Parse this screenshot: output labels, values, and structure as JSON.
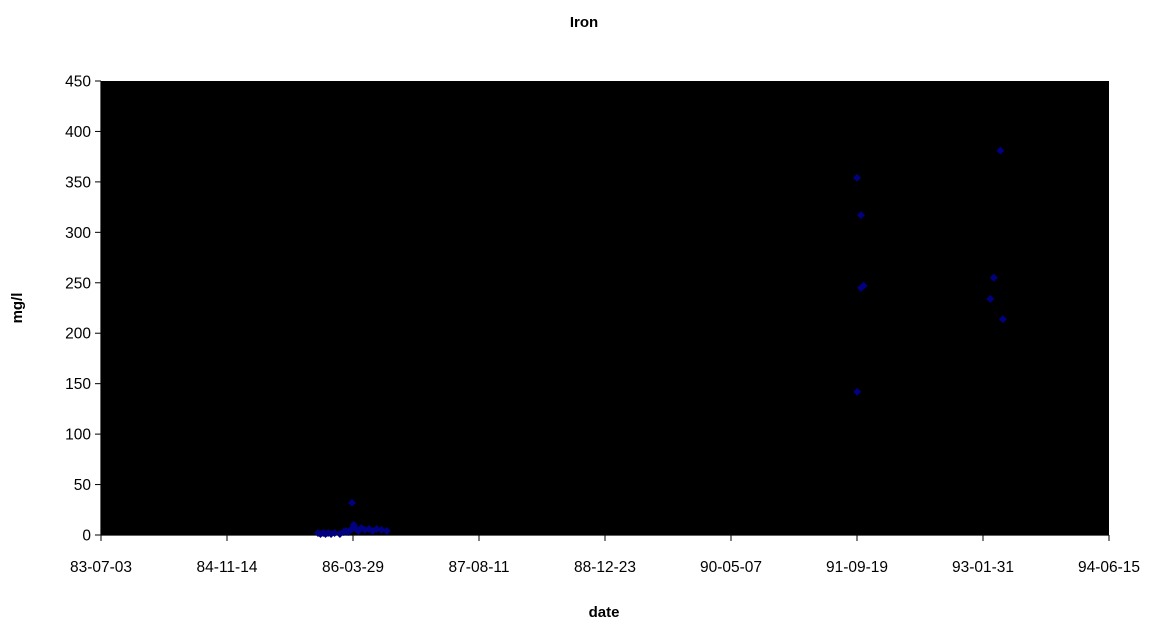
{
  "chart_data": {
    "type": "scatter",
    "title": "Iron",
    "xlabel": "date",
    "ylabel": "mg/l",
    "x_axis_type": "date",
    "xlim": [
      "83-07-03",
      "94-06-15"
    ],
    "ylim": [
      0,
      450
    ],
    "x_ticks": [
      "83-07-03",
      "84-11-14",
      "86-03-29",
      "87-08-11",
      "88-12-23",
      "90-05-07",
      "91-09-19",
      "93-01-31",
      "94-06-15"
    ],
    "y_ticks": [
      0,
      50,
      100,
      150,
      200,
      250,
      300,
      350,
      400,
      450
    ],
    "grid": false,
    "plot_background": "#000000",
    "marker_color": "#000080",
    "marker": "diamond",
    "series": [
      {
        "points": [
          {
            "x": "85-11-10",
            "y": 2
          },
          {
            "x": "85-11-20",
            "y": 1
          },
          {
            "x": "85-12-01",
            "y": 2
          },
          {
            "x": "85-12-10",
            "y": 1
          },
          {
            "x": "85-12-20",
            "y": 2
          },
          {
            "x": "86-01-01",
            "y": 1
          },
          {
            "x": "86-01-15",
            "y": 2
          },
          {
            "x": "86-02-05",
            "y": 1
          },
          {
            "x": "86-02-20",
            "y": 3
          },
          {
            "x": "86-03-01",
            "y": 4
          },
          {
            "x": "86-03-10",
            "y": 3
          },
          {
            "x": "86-03-20",
            "y": 5
          },
          {
            "x": "86-03-25",
            "y": 32
          },
          {
            "x": "86-04-01",
            "y": 10
          },
          {
            "x": "86-04-10",
            "y": 6
          },
          {
            "x": "86-04-20",
            "y": 4
          },
          {
            "x": "86-05-01",
            "y": 7
          },
          {
            "x": "86-05-15",
            "y": 5
          },
          {
            "x": "86-06-01",
            "y": 6
          },
          {
            "x": "86-06-15",
            "y": 4
          },
          {
            "x": "86-07-01",
            "y": 6
          },
          {
            "x": "86-07-20",
            "y": 5
          },
          {
            "x": "86-08-10",
            "y": 4
          },
          {
            "x": "91-09-19",
            "y": 354
          },
          {
            "x": "91-09-20",
            "y": 142
          },
          {
            "x": "91-10-05",
            "y": 317
          },
          {
            "x": "91-10-05",
            "y": 245
          },
          {
            "x": "91-10-15",
            "y": 247
          },
          {
            "x": "93-03-01",
            "y": 234
          },
          {
            "x": "93-03-15",
            "y": 255
          },
          {
            "x": "93-04-10",
            "y": 381
          },
          {
            "x": "93-04-20",
            "y": 214
          }
        ]
      }
    ]
  }
}
